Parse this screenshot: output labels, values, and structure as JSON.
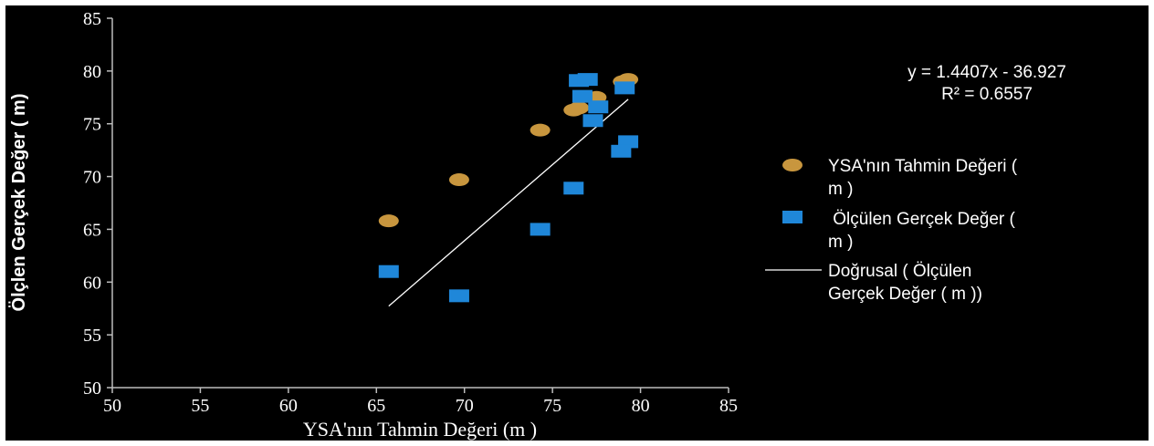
{
  "chart_data": {
    "type": "scatter",
    "xlabel": "YSA'nın  Tahmin Değeri (m )",
    "ylabel": "Ölçlen Gerçek Değer  ( m)",
    "xlim": [
      50,
      85
    ],
    "ylim": [
      50,
      85
    ],
    "xticks": [
      50,
      55,
      60,
      65,
      70,
      75,
      80,
      85
    ],
    "yticks": [
      50,
      55,
      60,
      65,
      70,
      75,
      80,
      85
    ],
    "grid": false,
    "legend_position": "right",
    "background": "#000000",
    "series": [
      {
        "name_lines": [
          "YSA'nın Tahmin Değeri (",
          "m )"
        ],
        "marker": "ellipse",
        "color": "#c8963e",
        "points": [
          [
            65.7,
            65.8
          ],
          [
            69.7,
            69.7
          ],
          [
            74.3,
            74.4
          ],
          [
            76.2,
            76.3
          ],
          [
            76.5,
            76.5
          ],
          [
            77.5,
            77.5
          ],
          [
            79.0,
            79.0
          ],
          [
            79.3,
            79.2
          ]
        ]
      },
      {
        "name_lines": [
          " Ölçülen Gerçek Değer (",
          "m )"
        ],
        "marker": "square",
        "color": "#1f87d9",
        "points": [
          [
            65.7,
            61.0
          ],
          [
            69.7,
            58.7
          ],
          [
            74.3,
            65.0
          ],
          [
            76.2,
            68.9
          ],
          [
            76.5,
            79.1
          ],
          [
            77.0,
            79.2
          ],
          [
            76.7,
            77.6
          ],
          [
            77.6,
            76.6
          ],
          [
            77.3,
            75.3
          ],
          [
            79.3,
            73.3
          ],
          [
            78.9,
            72.4
          ],
          [
            79.1,
            78.4
          ]
        ]
      }
    ],
    "trendline": {
      "name_lines": [
        "Doğrusal ( Ölçülen",
        "Gerçek Değer ( m ))"
      ],
      "slope": 1.4407,
      "intercept": -36.927,
      "x_range": [
        65.7,
        79.3
      ],
      "color": "#ffffff",
      "equation": "y = 1.4407x - 36.927",
      "r2": "R² = 0.6557"
    }
  }
}
